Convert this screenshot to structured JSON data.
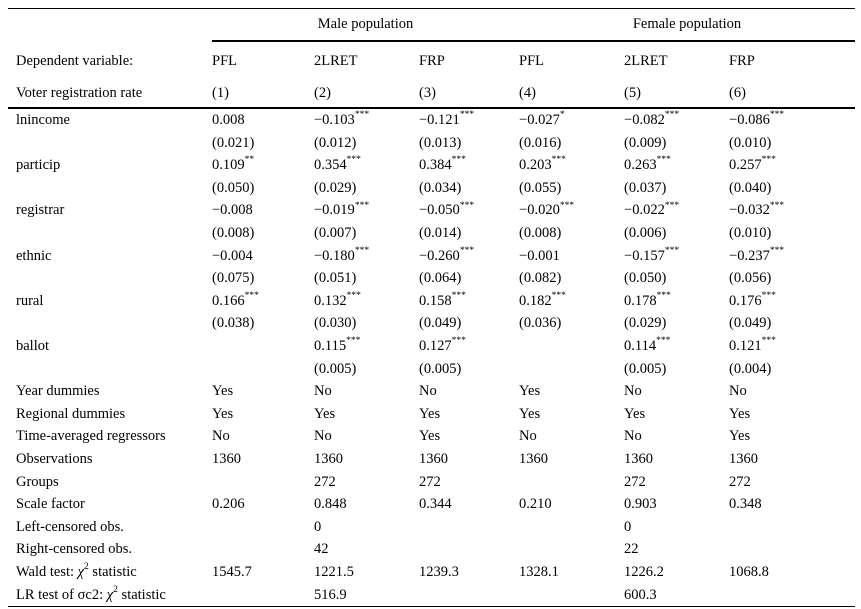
{
  "table": {
    "group_headers": [
      {
        "label": "Male population"
      },
      {
        "label": "Female population"
      }
    ],
    "header_rows": [
      {
        "label": "Dependent variable:",
        "cells": [
          "PFL",
          "2LRET",
          "FRP",
          "PFL",
          "2LRET",
          "FRP"
        ]
      },
      {
        "label": "Voter registration rate",
        "cells": [
          "(1)",
          "(2)",
          "(3)",
          "(4)",
          "(5)",
          "(6)"
        ]
      }
    ],
    "coefficient_rows": [
      {
        "label": "lnincome",
        "coefs": [
          {
            "v": "0.008",
            "stars": ""
          },
          {
            "v": "−0.103",
            "stars": "***"
          },
          {
            "v": "−0.121",
            "stars": "***"
          },
          {
            "v": "−0.027",
            "stars": "*"
          },
          {
            "v": "−0.082",
            "stars": "***"
          },
          {
            "v": "−0.086",
            "stars": "***"
          }
        ],
        "se": [
          "(0.021)",
          "(0.012)",
          "(0.013)",
          "(0.016)",
          "(0.009)",
          "(0.010)"
        ]
      },
      {
        "label": "particip",
        "coefs": [
          {
            "v": "0.109",
            "stars": "**"
          },
          {
            "v": "0.354",
            "stars": "***"
          },
          {
            "v": "0.384",
            "stars": "***"
          },
          {
            "v": "0.203",
            "stars": "***"
          },
          {
            "v": "0.263",
            "stars": "***"
          },
          {
            "v": "0.257",
            "stars": "***"
          }
        ],
        "se": [
          "(0.050)",
          "(0.029)",
          "(0.034)",
          "(0.055)",
          "(0.037)",
          "(0.040)"
        ]
      },
      {
        "label": "registrar",
        "coefs": [
          {
            "v": "−0.008",
            "stars": ""
          },
          {
            "v": "−0.019",
            "stars": "***"
          },
          {
            "v": "−0.050",
            "stars": "***"
          },
          {
            "v": "−0.020",
            "stars": "***"
          },
          {
            "v": "−0.022",
            "stars": "***"
          },
          {
            "v": "−0.032",
            "stars": "***"
          }
        ],
        "se": [
          "(0.008)",
          "(0.007)",
          "(0.014)",
          "(0.008)",
          "(0.006)",
          "(0.010)"
        ]
      },
      {
        "label": "ethnic",
        "coefs": [
          {
            "v": "−0.004",
            "stars": ""
          },
          {
            "v": "−0.180",
            "stars": "***"
          },
          {
            "v": "−0.260",
            "stars": "***"
          },
          {
            "v": "−0.001",
            "stars": ""
          },
          {
            "v": "−0.157",
            "stars": "***"
          },
          {
            "v": "−0.237",
            "stars": "***"
          }
        ],
        "se": [
          "(0.075)",
          "(0.051)",
          "(0.064)",
          "(0.082)",
          "(0.050)",
          "(0.056)"
        ]
      },
      {
        "label": "rural",
        "coefs": [
          {
            "v": "0.166",
            "stars": "***"
          },
          {
            "v": "0.132",
            "stars": "***"
          },
          {
            "v": "0.158",
            "stars": "***"
          },
          {
            "v": "0.182",
            "stars": "***"
          },
          {
            "v": "0.178",
            "stars": "***"
          },
          {
            "v": "0.176",
            "stars": "***"
          }
        ],
        "se": [
          "(0.038)",
          "(0.030)",
          "(0.049)",
          "(0.036)",
          "(0.029)",
          "(0.049)"
        ]
      },
      {
        "label": "ballot",
        "coefs": [
          {
            "v": "",
            "stars": ""
          },
          {
            "v": "0.115",
            "stars": "***"
          },
          {
            "v": "0.127",
            "stars": "***"
          },
          {
            "v": "",
            "stars": ""
          },
          {
            "v": "0.114",
            "stars": "***"
          },
          {
            "v": "0.121",
            "stars": "***"
          }
        ],
        "se": [
          "",
          "(0.005)",
          "(0.005)",
          "",
          "(0.005)",
          "(0.004)"
        ]
      }
    ],
    "summary_rows": [
      {
        "label": [
          {
            "t": "Year dummies"
          }
        ],
        "cells": [
          "Yes",
          "No",
          "No",
          "Yes",
          "No",
          "No"
        ]
      },
      {
        "label": [
          {
            "t": "Regional dummies"
          }
        ],
        "cells": [
          "Yes",
          "Yes",
          "Yes",
          "Yes",
          "Yes",
          "Yes"
        ]
      },
      {
        "label": [
          {
            "t": "Time-averaged regressors"
          }
        ],
        "cells": [
          "No",
          "No",
          "Yes",
          "No",
          "No",
          "Yes"
        ]
      },
      {
        "label": [
          {
            "t": "Observations"
          }
        ],
        "cells": [
          "1360",
          "1360",
          "1360",
          "1360",
          "1360",
          "1360"
        ]
      },
      {
        "label": [
          {
            "t": "Groups"
          }
        ],
        "cells": [
          "",
          "272",
          "272",
          "",
          "272",
          "272"
        ]
      },
      {
        "label": [
          {
            "t": "Scale factor"
          }
        ],
        "cells": [
          "0.206",
          "0.848",
          "0.344",
          "0.210",
          "0.903",
          "0.348"
        ]
      },
      {
        "label": [
          {
            "t": "Left-censored obs."
          }
        ],
        "cells": [
          "",
          "0",
          "",
          "",
          "0",
          ""
        ]
      },
      {
        "label": [
          {
            "t": "Right-censored obs."
          }
        ],
        "cells": [
          "",
          "42",
          "",
          "",
          "22",
          ""
        ]
      },
      {
        "label": [
          {
            "t": "Wald test: "
          },
          {
            "t": "χ",
            "italic": true
          },
          {
            "t": "2",
            "sup": true
          },
          {
            "t": " statistic"
          }
        ],
        "cells": [
          "1545.7",
          "1221.5",
          "1239.3",
          "1328.1",
          "1226.2",
          "1068.8"
        ]
      },
      {
        "label": [
          {
            "t": "LR test of σc2: "
          },
          {
            "t": "χ",
            "italic": true
          },
          {
            "t": "2",
            "sup": true
          },
          {
            "t": " statistic"
          }
        ],
        "cells": [
          "",
          "516.9",
          "",
          "",
          "600.3",
          ""
        ]
      }
    ]
  }
}
